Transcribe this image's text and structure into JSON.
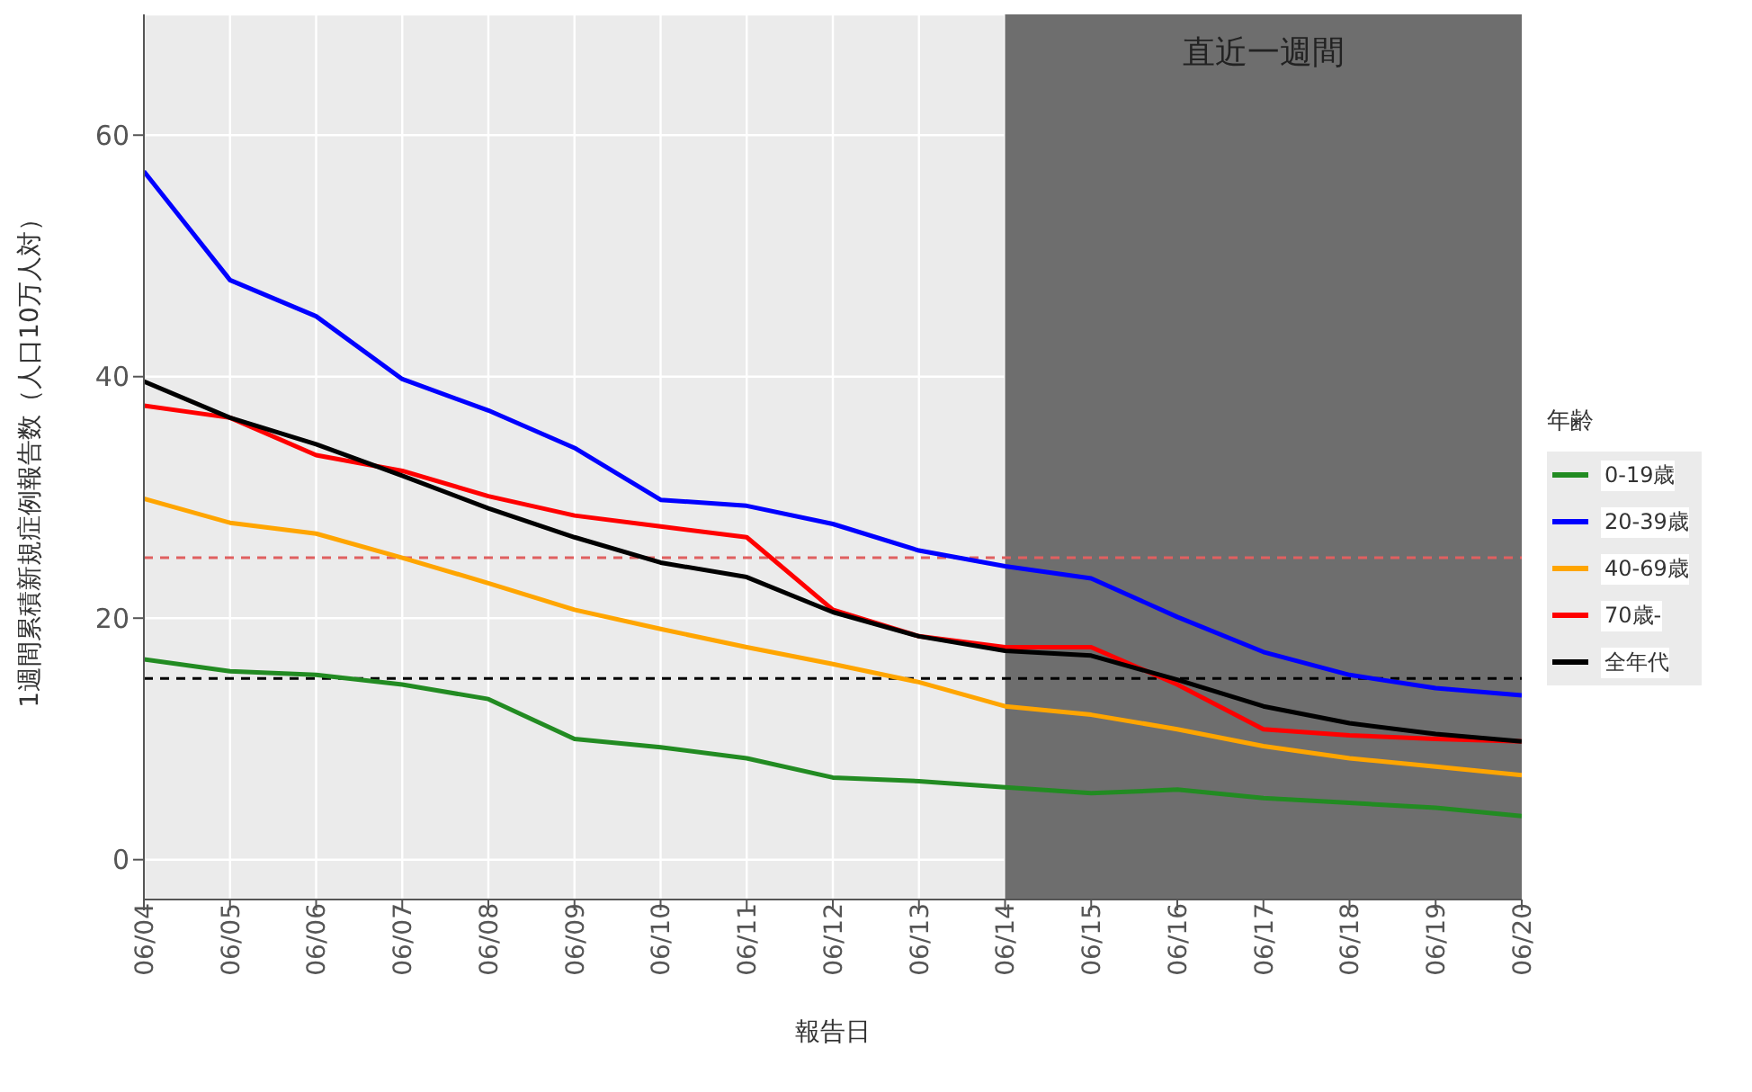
{
  "chart_data": {
    "type": "line",
    "xlabel": "報告日",
    "ylabel": "1週間累積新規症例報告数（人口10万人対）",
    "legend_title": "年齢",
    "categories": [
      "06/04",
      "06/05",
      "06/06",
      "06/07",
      "06/08",
      "06/09",
      "06/10",
      "06/11",
      "06/12",
      "06/13",
      "06/14",
      "06/15",
      "06/16",
      "06/17",
      "06/18",
      "06/19",
      "06/20"
    ],
    "series": [
      {
        "name": "0-19歳",
        "color": "#228b22",
        "values": [
          16.6,
          15.6,
          15.3,
          14.5,
          13.3,
          10.0,
          9.3,
          8.4,
          6.8,
          6.5,
          6.0,
          5.5,
          5.8,
          5.1,
          4.7,
          4.3,
          3.6
        ]
      },
      {
        "name": "20-39歳",
        "color": "#0000ff",
        "values": [
          57.0,
          48.0,
          45.0,
          39.8,
          37.2,
          34.1,
          29.8,
          29.3,
          27.8,
          25.6,
          24.3,
          23.3,
          20.1,
          17.2,
          15.3,
          14.2,
          13.6
        ]
      },
      {
        "name": "40-69歳",
        "color": "#ffa500",
        "values": [
          29.9,
          27.9,
          27.0,
          25.0,
          22.9,
          20.7,
          19.1,
          17.6,
          16.2,
          14.7,
          12.7,
          12.0,
          10.8,
          9.4,
          8.4,
          7.7,
          7.0
        ]
      },
      {
        "name": "70歳-",
        "color": "#ff0000",
        "values": [
          37.6,
          36.6,
          33.5,
          32.2,
          30.1,
          28.5,
          27.6,
          26.7,
          20.7,
          18.5,
          17.6,
          17.6,
          14.5,
          10.8,
          10.3,
          10.0,
          9.8
        ]
      },
      {
        "name": "全年代",
        "color": "#000000",
        "values": [
          39.6,
          36.6,
          34.4,
          31.8,
          29.1,
          26.7,
          24.6,
          23.4,
          20.5,
          18.5,
          17.3,
          16.9,
          14.9,
          12.7,
          11.3,
          10.4,
          9.8
        ]
      }
    ],
    "ylim": [
      -3.3,
      70
    ],
    "yticks": [
      0,
      20,
      40,
      60
    ],
    "grid": true,
    "legend": "right",
    "line_style": "solid",
    "ref_lines": [
      {
        "axis": "y",
        "value": 25,
        "color": "#e06060",
        "line_style": "dashed"
      },
      {
        "axis": "y",
        "value": 15,
        "color": "#000000",
        "line_style": "dashed"
      }
    ],
    "bands": [
      {
        "axis": "x",
        "from": "06/14",
        "to": "06/20",
        "label": "直近一週間",
        "color": "#6e6e6e"
      }
    ]
  }
}
